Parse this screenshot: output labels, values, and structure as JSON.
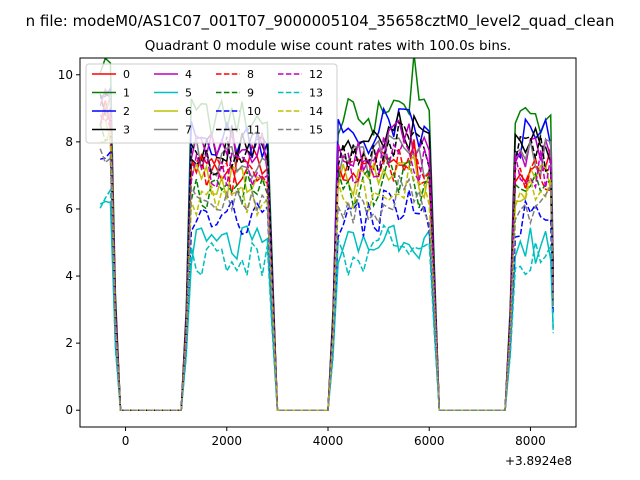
{
  "chart_data": {
    "type": "line",
    "title_main": "n file: modeM0/AS1C07_001T07_9000005104_35658cztM0_level2_quad_clean",
    "title_sub": "Quadrant 0 module wise count rates with 100.0s bins.",
    "xlabel": "",
    "ylabel": "",
    "x_offset_label": "+3.8924e8",
    "xlim": [
      -900,
      8900
    ],
    "ylim": [
      -0.5,
      10.5
    ],
    "x_ticks": [
      0,
      2000,
      4000,
      6000,
      8000
    ],
    "x_tick_labels": [
      "0",
      "2000",
      "4000",
      "6000",
      "8000"
    ],
    "y_ticks": [
      0,
      2,
      4,
      6,
      8,
      10
    ],
    "y_tick_labels": [
      "0",
      "2",
      "4",
      "6",
      "8",
      "10"
    ],
    "grid": false,
    "legend_position": "upper-left",
    "legend_columns": 4,
    "x": [
      -500,
      -400,
      -300,
      -200,
      -100,
      0,
      100,
      200,
      300,
      400,
      500,
      600,
      700,
      800,
      900,
      1000,
      1100,
      1200,
      1300,
      1400,
      1500,
      1600,
      1700,
      1800,
      1900,
      2000,
      2100,
      2200,
      2300,
      2400,
      2500,
      2600,
      2700,
      2800,
      2900,
      3000,
      3100,
      3200,
      3300,
      3400,
      3500,
      3600,
      3700,
      3800,
      3900,
      4000,
      4100,
      4200,
      4300,
      4400,
      4500,
      4600,
      4700,
      4800,
      4900,
      5000,
      5100,
      5200,
      5300,
      5400,
      5500,
      5600,
      5700,
      5800,
      5900,
      6000,
      6100,
      6200,
      6300,
      6400,
      6500,
      6600,
      6700,
      6800,
      6900,
      7000,
      7100,
      7200,
      7300,
      7400,
      7500,
      7600,
      7700,
      7800,
      7900,
      8000,
      8100,
      8200,
      8300,
      8400,
      8450
    ],
    "series": [
      {
        "name": "0",
        "color": "#ff0000",
        "dash": "solid"
      },
      {
        "name": "1",
        "color": "#008000",
        "dash": "solid"
      },
      {
        "name": "2",
        "color": "#0000ff",
        "dash": "solid"
      },
      {
        "name": "3",
        "color": "#000000",
        "dash": "solid"
      },
      {
        "name": "4",
        "color": "#bf00bf",
        "dash": "solid"
      },
      {
        "name": "5",
        "color": "#00bfbf",
        "dash": "solid"
      },
      {
        "name": "6",
        "color": "#bfbf00",
        "dash": "solid"
      },
      {
        "name": "7",
        "color": "#808080",
        "dash": "solid"
      },
      {
        "name": "8",
        "color": "#ff0000",
        "dash": "dashed"
      },
      {
        "name": "9",
        "color": "#008000",
        "dash": "dashed"
      },
      {
        "name": "10",
        "color": "#0000ff",
        "dash": "dashed"
      },
      {
        "name": "11",
        "color": "#000000",
        "dash": "dashed"
      },
      {
        "name": "12",
        "color": "#bf00bf",
        "dash": "dashed"
      },
      {
        "name": "13",
        "color": "#00bfbf",
        "dash": "dashed"
      },
      {
        "name": "14",
        "color": "#bfbf00",
        "dash": "dashed"
      },
      {
        "name": "15",
        "color": "#808080",
        "dash": "dashed"
      }
    ],
    "active_windows": [
      [
        -400,
        -300
      ],
      [
        1300,
        2800
      ],
      [
        4200,
        6000
      ],
      [
        7700,
        8400
      ]
    ],
    "series_levels": [
      7.3,
      8.7,
      8.1,
      7.9,
      7.7,
      4.9,
      6.8,
      7.5,
      7.0,
      6.6,
      5.7,
      7.6,
      7.2,
      4.6,
      6.4,
      6.1
    ]
  }
}
